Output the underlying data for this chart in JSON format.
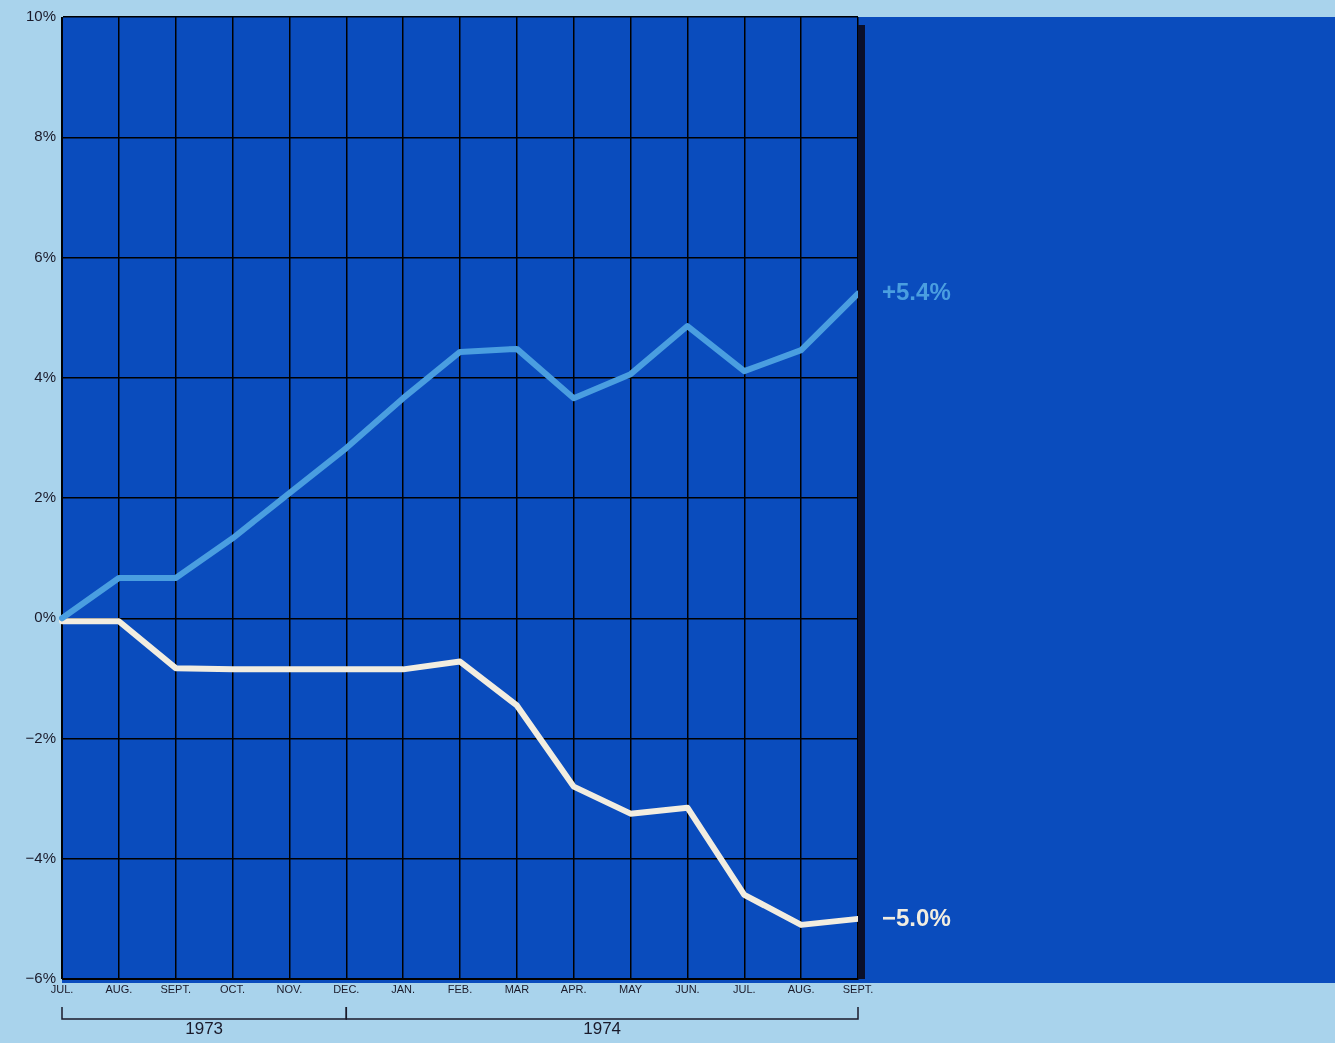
{
  "chart_data": {
    "type": "line",
    "categories": [
      "JUL.",
      "AUG.",
      "SEPT.",
      "OCT.",
      "NOV.",
      "DEC.",
      "JAN.",
      "FEB.",
      "MAR",
      "APR.",
      "MAY",
      "JUN.",
      "JUL.",
      "AUG.",
      "SEPT."
    ],
    "series": [
      {
        "color": "#4a9ee0",
        "values": [
          0,
          0.67,
          0.67,
          1.33,
          2.08,
          2.83,
          3.66,
          4.43,
          4.48,
          3.66,
          4.06,
          4.86,
          4.11,
          4.46,
          5.4
        ],
        "value_labels": [
          null,
          null,
          null,
          null,
          null,
          null,
          null,
          null,
          null,
          null,
          null,
          null,
          null,
          null,
          "+5.4%"
        ]
      },
      {
        "color": "#f2ede0",
        "values": [
          -0.05,
          -0.05,
          -0.83,
          -0.85,
          -0.85,
          -0.85,
          -0.85,
          -0.72,
          -1.45,
          -2.8,
          -3.25,
          -3.15,
          -4.6,
          -5.1,
          -5.0
        ],
        "value_labels": [
          null,
          null,
          null,
          null,
          null,
          null,
          null,
          null,
          null,
          null,
          null,
          null,
          null,
          null,
          "−5.0%"
        ]
      }
    ],
    "ylim": [
      -6,
      10
    ],
    "yticks": [
      {
        "value": -6,
        "label": "−6%"
      },
      {
        "value": -4,
        "label": "−4%"
      },
      {
        "value": -2,
        "label": "−2%"
      },
      {
        "value": 0,
        "label": "0%"
      },
      {
        "value": 2,
        "label": "2%"
      },
      {
        "value": 4,
        "label": "4%"
      },
      {
        "value": 6,
        "label": "6%"
      },
      {
        "value": 8,
        "label": "8%"
      },
      {
        "value": 10,
        "label": "10%"
      }
    ],
    "annotations": [
      "1973",
      "1974"
    ],
    "grid": true,
    "legend": false,
    "marker": "none",
    "line_style": "solid"
  }
}
